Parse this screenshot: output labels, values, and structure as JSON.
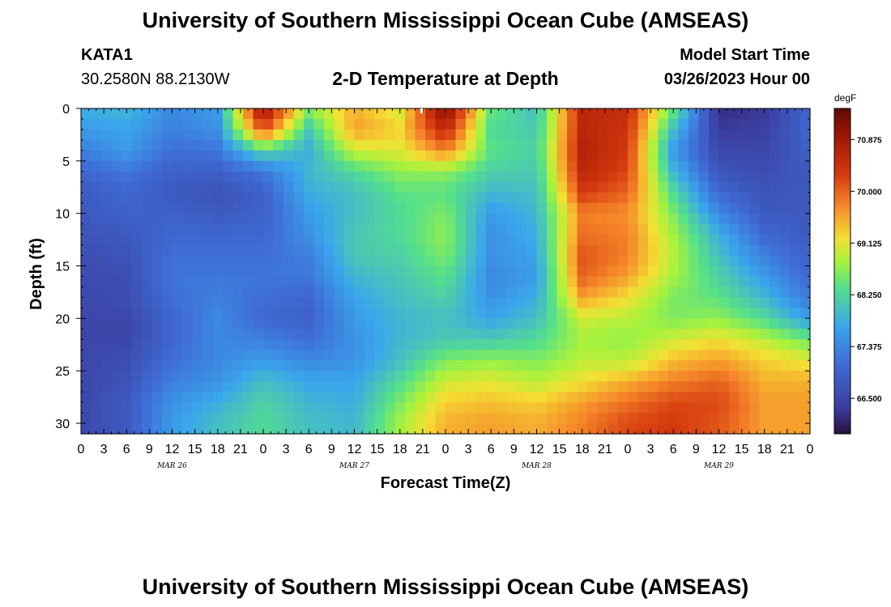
{
  "page_title": "University of Southern Mississippi Ocean Cube (AMSEAS)",
  "footer_title": "University of Southern Mississippi Ocean Cube (AMSEAS)",
  "station": {
    "id": "KATA1",
    "coords": "30.2580N  88.2130W"
  },
  "model_start": {
    "label": "Model Start Time",
    "value": "03/26/2023 Hour 00"
  },
  "chart_data": {
    "type": "heatmap",
    "title": "2-D Temperature at Depth",
    "xlabel": "Forecast Time(Z)",
    "ylabel": "Depth (ft)",
    "xlim_hours": [
      0,
      96
    ],
    "ylim": [
      0,
      31
    ],
    "x_tick_labels": [
      "0",
      "3",
      "6",
      "9",
      "12",
      "15",
      "18",
      "21",
      "0",
      "3",
      "6",
      "9",
      "12",
      "15",
      "18",
      "21",
      "0",
      "3",
      "6",
      "9",
      "12",
      "15",
      "18",
      "21",
      "0",
      "3",
      "6",
      "9",
      "12",
      "15",
      "18",
      "21",
      "0"
    ],
    "day_labels": [
      "MAR 26",
      "MAR 27",
      "MAR 28",
      "MAR 29"
    ],
    "y_ticks": [
      0,
      5,
      10,
      15,
      20,
      25,
      30
    ],
    "colorbar": {
      "unit": "degF",
      "range": [
        65.9,
        71.4
      ],
      "tick_values": [
        70.875,
        70.0,
        69.125,
        68.25,
        67.375,
        66.5
      ],
      "tick_labels": [
        "70.875",
        "70.000",
        "69.125",
        "68.250",
        "67.375",
        "66.500"
      ]
    },
    "x_hours": [
      0,
      6,
      12,
      18,
      24,
      30,
      36,
      42,
      48,
      54,
      60,
      66,
      72,
      78,
      84,
      90,
      96
    ],
    "depths": [
      0,
      2,
      4,
      6,
      8,
      10,
      12,
      14,
      16,
      18,
      20,
      22,
      24,
      26,
      28,
      30
    ],
    "values": [
      [
        67.8,
        67.9,
        67.4,
        67.6,
        71.0,
        68.7,
        69.5,
        69.0,
        71.2,
        68.5,
        68.0,
        70.6,
        70.5,
        68.5,
        66.2,
        66.3,
        67.0
      ],
      [
        67.6,
        67.7,
        67.3,
        67.5,
        70.2,
        68.1,
        69.6,
        69.3,
        70.6,
        68.3,
        68.1,
        70.6,
        70.4,
        68.0,
        66.3,
        66.4,
        67.0
      ],
      [
        67.3,
        67.6,
        67.1,
        67.2,
        68.3,
        67.8,
        69.0,
        69.1,
        69.8,
        68.4,
        68.2,
        70.7,
        70.3,
        67.6,
        66.5,
        66.5,
        66.9
      ],
      [
        67.0,
        67.2,
        66.9,
        66.9,
        67.2,
        67.9,
        68.3,
        68.7,
        68.7,
        68.2,
        68.1,
        70.6,
        70.2,
        67.9,
        66.7,
        66.6,
        66.8
      ],
      [
        66.8,
        67.0,
        66.8,
        66.7,
        66.9,
        67.8,
        68.0,
        68.4,
        68.4,
        67.9,
        68.0,
        70.3,
        70.0,
        68.3,
        67.0,
        66.7,
        66.8
      ],
      [
        66.8,
        66.9,
        66.9,
        66.8,
        66.9,
        67.6,
        68.0,
        68.3,
        68.6,
        67.6,
        67.9,
        69.8,
        69.7,
        68.6,
        67.4,
        66.8,
        66.8
      ],
      [
        66.7,
        66.8,
        67.0,
        67.0,
        67.0,
        67.5,
        68.1,
        68.3,
        68.7,
        67.5,
        67.8,
        69.9,
        69.8,
        68.8,
        67.8,
        67.0,
        66.8
      ],
      [
        66.6,
        66.7,
        67.1,
        67.1,
        67.1,
        67.3,
        68.1,
        68.2,
        68.6,
        67.5,
        67.7,
        70.1,
        69.8,
        68.9,
        68.0,
        67.3,
        66.9
      ],
      [
        66.6,
        66.6,
        67.2,
        67.2,
        67.2,
        67.2,
        67.9,
        68.1,
        68.4,
        67.4,
        67.6,
        70.0,
        69.6,
        68.8,
        68.2,
        67.6,
        67.0
      ],
      [
        66.5,
        66.6,
        67.1,
        67.3,
        67.1,
        67.0,
        67.7,
        68.0,
        68.2,
        67.5,
        67.8,
        69.6,
        69.2,
        68.6,
        68.4,
        67.9,
        67.2
      ],
      [
        66.5,
        66.5,
        67.0,
        67.4,
        67.0,
        66.9,
        67.6,
        67.9,
        68.0,
        67.7,
        68.0,
        69.0,
        68.9,
        68.6,
        68.7,
        68.3,
        67.6
      ],
      [
        66.5,
        66.5,
        67.0,
        67.4,
        67.3,
        67.1,
        67.5,
        67.9,
        68.1,
        68.1,
        68.3,
        68.8,
        68.7,
        69.0,
        69.2,
        68.9,
        68.5
      ],
      [
        66.5,
        66.6,
        67.1,
        67.4,
        67.6,
        67.4,
        67.5,
        68.0,
        68.6,
        68.7,
        68.6,
        68.9,
        68.9,
        69.4,
        69.6,
        69.3,
        69.1
      ],
      [
        66.5,
        66.7,
        67.3,
        67.5,
        68.0,
        67.7,
        67.7,
        68.3,
        69.0,
        69.1,
        68.9,
        69.2,
        69.5,
        69.8,
        70.0,
        69.5,
        69.5
      ],
      [
        66.5,
        66.8,
        67.5,
        67.8,
        68.2,
        67.9,
        67.8,
        68.6,
        69.3,
        69.4,
        69.3,
        69.6,
        69.9,
        70.2,
        70.2,
        69.6,
        69.6
      ],
      [
        66.5,
        66.8,
        67.6,
        68.0,
        68.3,
        68.0,
        67.9,
        68.8,
        69.5,
        69.6,
        69.5,
        69.8,
        70.2,
        70.3,
        70.1,
        69.6,
        69.6
      ]
    ]
  }
}
